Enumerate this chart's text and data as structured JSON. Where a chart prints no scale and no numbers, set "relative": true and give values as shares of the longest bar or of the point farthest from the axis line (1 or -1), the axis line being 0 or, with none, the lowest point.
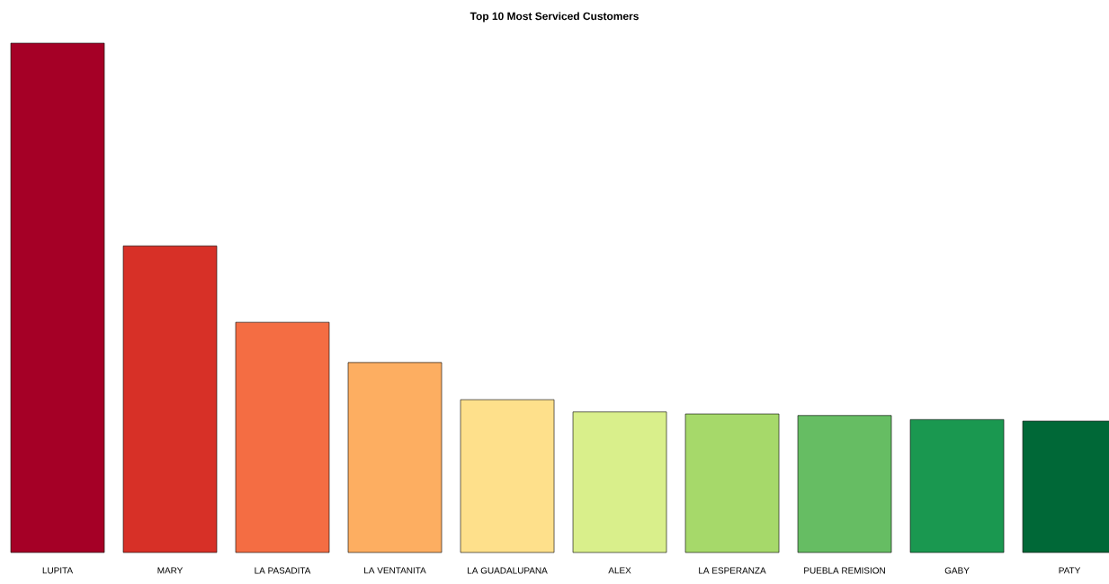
{
  "chart_data": {
    "type": "bar",
    "title": "Top 10 Most Serviced Customers",
    "relative": true,
    "categories": [
      "LUPITA",
      "MARY",
      "LA PASADITA",
      "LA VENTANITA",
      "LA GUADALUPANA",
      "ALEX",
      "LA ESPERANZA",
      "PUEBLA REMISION",
      "GABY",
      "PATY"
    ],
    "values": [
      1,
      0.602,
      0.452,
      0.373,
      0.3,
      0.276,
      0.272,
      0.269,
      0.261,
      0.258
    ],
    "colors": [
      "#a50026",
      "#d73027",
      "#f46d43",
      "#fdae61",
      "#fee08b",
      "#d9ef8b",
      "#a6d96a",
      "#66bd63",
      "#1a9850",
      "#006837"
    ]
  }
}
